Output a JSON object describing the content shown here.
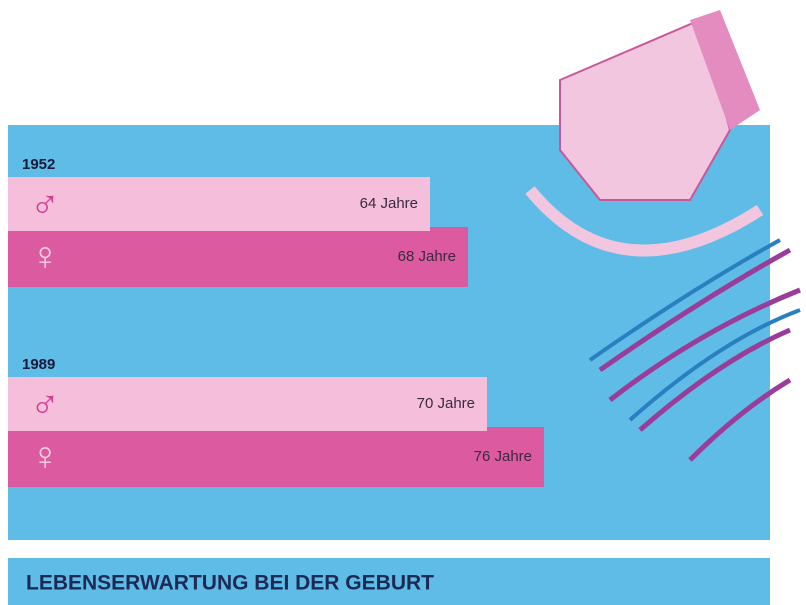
{
  "chart_data": {
    "type": "bar",
    "orientation": "horizontal",
    "title": "LEBENSERWARTUNG BEI DER GEBURT",
    "categories": [
      "1952",
      "1989"
    ],
    "series": [
      {
        "name": "♂",
        "color": "#f5bfdc",
        "values": [
          64,
          70
        ],
        "value_labels": [
          "64 Jahre",
          "70 Jahre"
        ]
      },
      {
        "name": "♀",
        "color": "#dc5aa0",
        "values": [
          68,
          76
        ],
        "value_labels": [
          "68 Jahre",
          "76 Jahre"
        ]
      }
    ]
  }
}
